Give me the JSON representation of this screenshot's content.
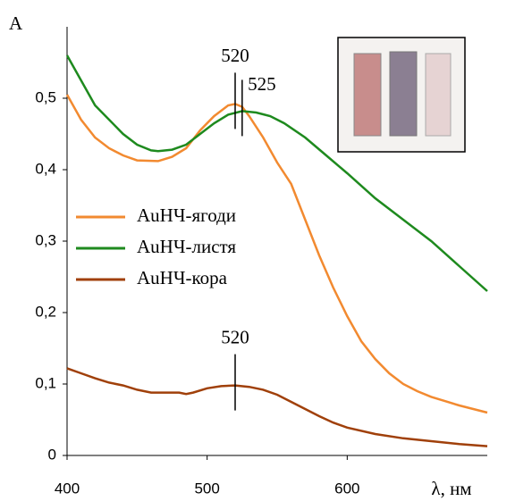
{
  "chart_data": {
    "type": "line",
    "ylabel": "A",
    "xlabel": "λ, нм",
    "xlim": [
      400,
      700
    ],
    "xticks": [
      400,
      500,
      600
    ],
    "ylim": [
      0,
      0.6
    ],
    "yticks": [
      0,
      {
        "value": 0.1,
        "label": "0,1"
      },
      {
        "value": 0.2,
        "label": "0,2"
      },
      {
        "value": 0.3,
        "label": "0,3"
      },
      {
        "value": 0.4,
        "label": "0,4"
      },
      {
        "value": 0.5,
        "label": "0,5"
      }
    ],
    "series": [
      {
        "name": "AuHЧ-ягоди",
        "color": "#f28a30",
        "x": [
          400,
          410,
          420,
          430,
          440,
          450,
          465,
          475,
          485,
          495,
          505,
          515,
          520,
          525,
          530,
          540,
          550,
          560,
          570,
          580,
          590,
          600,
          610,
          620,
          630,
          640,
          650,
          660,
          670,
          680,
          690,
          700
        ],
        "values": [
          0.505,
          0.47,
          0.445,
          0.43,
          0.42,
          0.413,
          0.412,
          0.418,
          0.43,
          0.455,
          0.475,
          0.49,
          0.492,
          0.488,
          0.475,
          0.445,
          0.41,
          0.38,
          0.33,
          0.28,
          0.235,
          0.195,
          0.16,
          0.135,
          0.115,
          0.1,
          0.09,
          0.082,
          0.076,
          0.07,
          0.065,
          0.06
        ]
      },
      {
        "name": "AuHЧ-листя",
        "color": "#1e8a1e",
        "x": [
          400,
          410,
          420,
          430,
          440,
          450,
          460,
          465,
          475,
          485,
          495,
          505,
          515,
          525,
          535,
          545,
          555,
          570,
          585,
          600,
          620,
          640,
          660,
          680,
          700
        ],
        "values": [
          0.56,
          0.525,
          0.49,
          0.47,
          0.45,
          0.435,
          0.427,
          0.426,
          0.428,
          0.435,
          0.45,
          0.465,
          0.477,
          0.482,
          0.48,
          0.475,
          0.465,
          0.445,
          0.42,
          0.395,
          0.36,
          0.33,
          0.3,
          0.265,
          0.23
        ]
      },
      {
        "name": "AuHЧ-кора",
        "color": "#a0400a",
        "x": [
          400,
          410,
          420,
          430,
          440,
          450,
          460,
          470,
          480,
          485,
          490,
          500,
          510,
          520,
          530,
          540,
          550,
          560,
          570,
          580,
          590,
          600,
          620,
          640,
          660,
          680,
          700
        ],
        "values": [
          0.122,
          0.115,
          0.108,
          0.102,
          0.098,
          0.092,
          0.088,
          0.088,
          0.088,
          0.086,
          0.088,
          0.094,
          0.097,
          0.098,
          0.096,
          0.092,
          0.085,
          0.075,
          0.065,
          0.055,
          0.046,
          0.039,
          0.03,
          0.024,
          0.02,
          0.016,
          0.013
        ]
      }
    ],
    "annotations": [
      {
        "text": "520",
        "x": 520,
        "y": 0.492
      },
      {
        "text": "525",
        "x": 525,
        "y": 0.482
      },
      {
        "text": "520",
        "x": 520,
        "y": 0.098
      }
    ]
  }
}
